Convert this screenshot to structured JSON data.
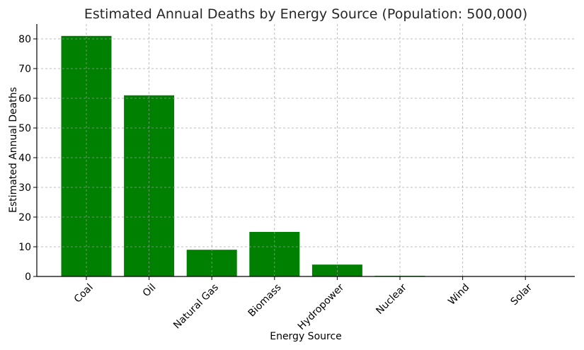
{
  "chart_data": {
    "type": "bar",
    "title": "Estimated Annual Deaths by Energy Source (Population: 500,000)",
    "xlabel": "Energy Source",
    "ylabel": "Estimated Annual Deaths",
    "categories": [
      "Coal",
      "Oil",
      "Natural Gas",
      "Biomass",
      "Hydropower",
      "Nuclear",
      "Wind",
      "Solar"
    ],
    "values": [
      81,
      61,
      9,
      15,
      4,
      0.2,
      0.02,
      0.02
    ],
    "ylim": [
      0,
      85
    ],
    "yticks": [
      0,
      10,
      20,
      30,
      40,
      50,
      60,
      70,
      80
    ],
    "bar_color": "#008000",
    "grid": true
  }
}
